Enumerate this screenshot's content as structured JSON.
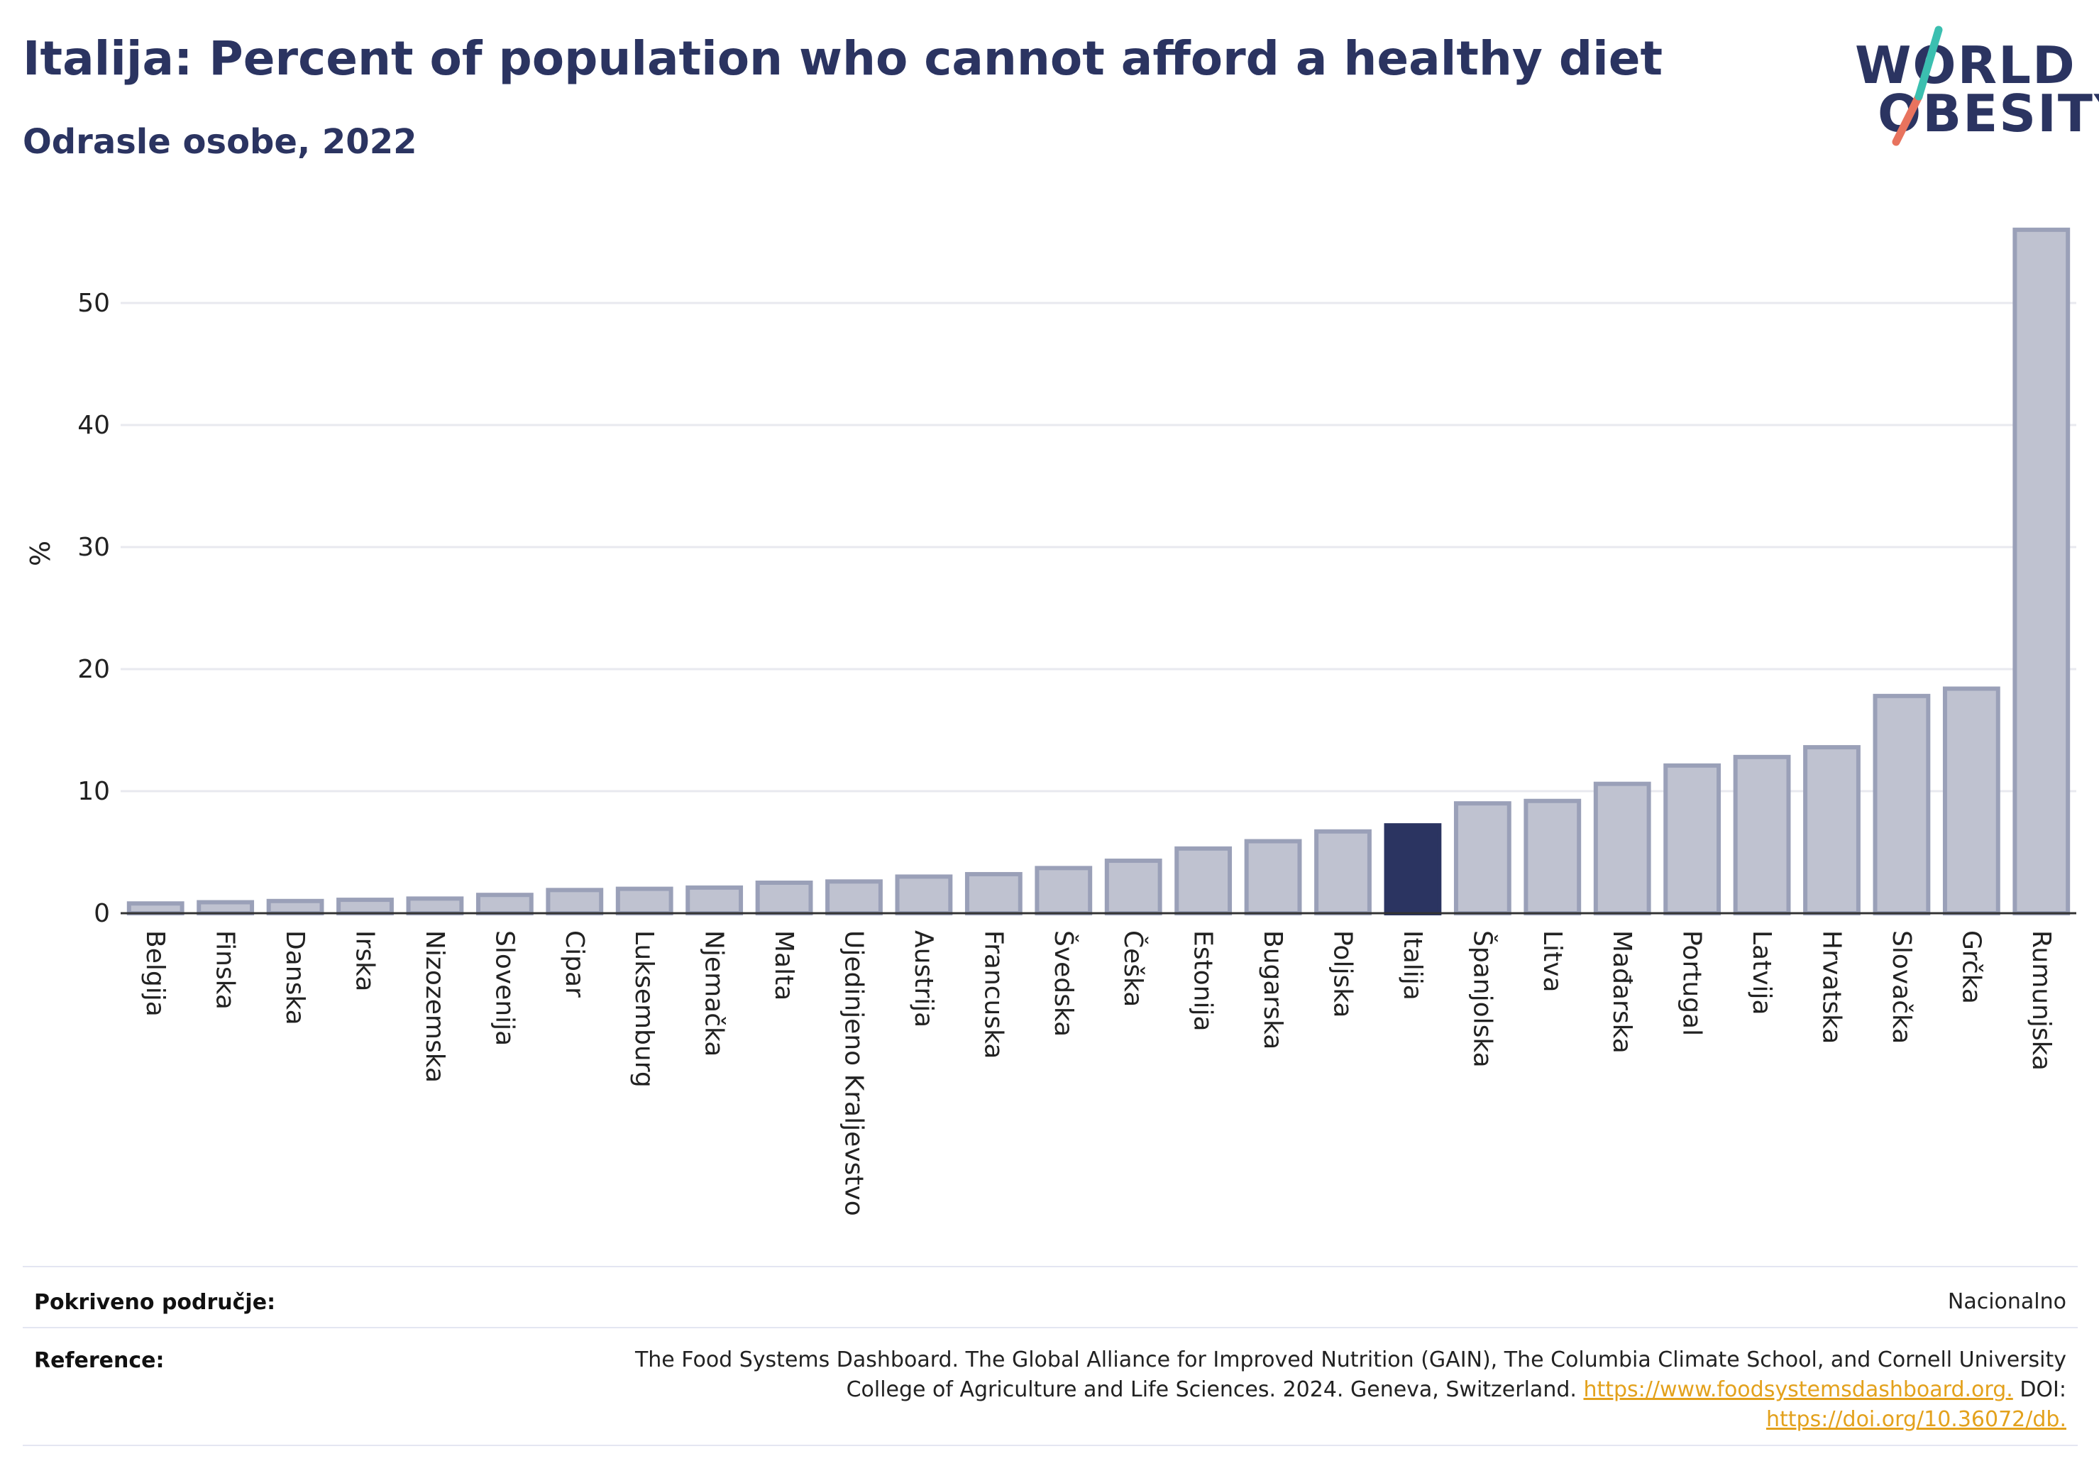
{
  "header": {
    "title": "Italija: Percent of population who cannot afford a healthy diet",
    "subtitle": "Odrasle osobe, 2022"
  },
  "logo": {
    "line1": "WORLD",
    "line2": "OBESITY",
    "accent_teal": "#3bbfb0",
    "accent_red": "#e8735e"
  },
  "chart_data": {
    "type": "bar",
    "title": "Italija: Percent of population who cannot afford a healthy diet",
    "subtitle": "Odrasle osobe, 2022",
    "xlabel": "",
    "ylabel": "%",
    "ylim": [
      0,
      58
    ],
    "yticks": [
      0,
      10,
      20,
      30,
      40,
      50
    ],
    "grid": "horizontal",
    "highlight": "Italija",
    "colors": {
      "bar": "#bfc2d0",
      "bar_stroke": "#9aa0b8",
      "highlight": "#2b3461",
      "grid": "#e8e9ef"
    },
    "categories": [
      "Belgija",
      "Finska",
      "Danska",
      "Irska",
      "Nizozemska",
      "Slovenija",
      "Cipar",
      "Luksemburg",
      "Njemačka",
      "Malta",
      "Ujedinjeno Kraljevstvo",
      "Austrija",
      "Francuska",
      "Švedska",
      "Češka",
      "Estonija",
      "Bugarska",
      "Poljska",
      "Italija",
      "Španjolska",
      "Litva",
      "Mađarska",
      "Portugal",
      "Latvija",
      "Hrvatska",
      "Slovačka",
      "Grčka",
      "Rumunjska"
    ],
    "values": [
      0.8,
      0.9,
      1.0,
      1.1,
      1.2,
      1.5,
      1.9,
      2.0,
      2.1,
      2.5,
      2.6,
      3.0,
      3.2,
      3.7,
      4.3,
      5.3,
      5.9,
      6.7,
      7.2,
      9.0,
      9.2,
      10.6,
      12.1,
      12.8,
      13.6,
      17.8,
      18.4,
      56.0
    ]
  },
  "footer": {
    "coverage_label": "Pokriveno područje:",
    "coverage_value": "Nacionalno",
    "reference_label": "Reference:",
    "reference_line1": "The Food Systems Dashboard. The Global Alliance for Improved Nutrition (GAIN), The Columbia Climate School, and Cornell University",
    "reference_line2_text": "College of Agriculture and Life Sciences. 2024. Geneva, Switzerland.",
    "reference_link1": "https://www.foodsystemsdashboard.org.",
    "reference_doi_label": "DOI:",
    "reference_link2": "https://doi.org/10.36072/db."
  }
}
